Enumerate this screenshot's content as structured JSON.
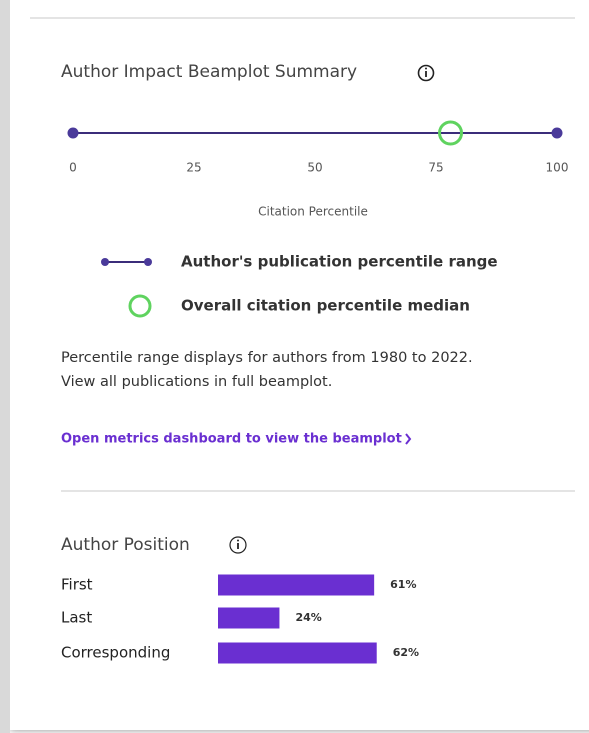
{
  "beamplot": {
    "title": "Author Impact Beamplot Summary",
    "xlim": [
      0,
      100
    ],
    "xticks": [
      0,
      25,
      50,
      75,
      100
    ],
    "xlabel": "Citation Percentile",
    "range": [
      0,
      100
    ],
    "median": 78,
    "legend": {
      "range": "Author's publication percentile range",
      "median": "Overall citation percentile median"
    },
    "note": [
      "Percentile range displays for authors from 1980 to 2022.",
      "View all publications in full beamplot."
    ],
    "link": "Open metrics dashboard to view the beamplot"
  },
  "author_position": {
    "title": "Author Position",
    "categories": [
      "First",
      "Last",
      "Corresponding"
    ],
    "values": [
      61,
      24,
      62
    ],
    "value_labels": [
      "61%",
      "24%",
      "62%"
    ]
  }
}
